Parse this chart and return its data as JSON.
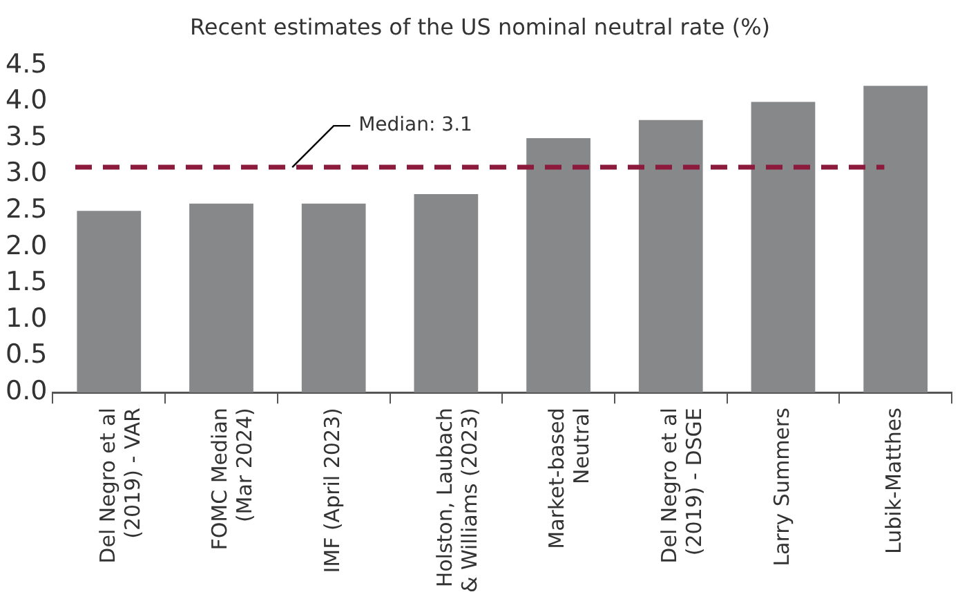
{
  "chart_data": {
    "type": "bar",
    "title": "Recent estimates of the US nominal neutral rate (%)",
    "categories": [
      "Del Negro et al (2019) - VAR",
      "FOMC Median (Mar 2024)",
      "IMF (April 2023)",
      "Holston, Laubach & Williams (2023)",
      "Market-based Neutral",
      "Del Negro et al (2019) - DSGE",
      "Larry Summers",
      "Lubik-Matthes"
    ],
    "values": [
      2.5,
      2.6,
      2.6,
      2.73,
      3.5,
      3.75,
      4.0,
      4.22
    ],
    "color": "#87888a",
    "ylim": [
      0,
      4.5
    ],
    "yticks": [
      {
        "value": 0,
        "label": "0.0"
      },
      0.5,
      {
        "value": 1,
        "label": "1.0"
      },
      1.5,
      {
        "value": 2,
        "label": "2.0"
      },
      2.5,
      {
        "value": 3,
        "label": "3.0"
      },
      3.5,
      {
        "value": 4,
        "label": "4.0"
      },
      4.5
    ],
    "grid": false,
    "legend": false,
    "ref_lines": [
      {
        "axis": "y",
        "value": 3.1,
        "label": "Median: 3.1",
        "color": "#8b1a3c",
        "line_style": "dashed"
      }
    ]
  }
}
